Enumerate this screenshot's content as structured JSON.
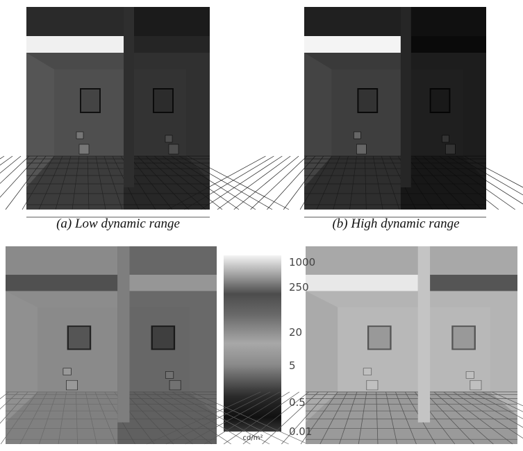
{
  "captions": [
    "(a) Low dynamic range",
    "(b) High dynamic range"
  ],
  "colorbar": {
    "ticks": [
      "1000",
      "250",
      "20",
      "5",
      "0.5",
      "0.01"
    ],
    "unit": "cd/m²"
  }
}
